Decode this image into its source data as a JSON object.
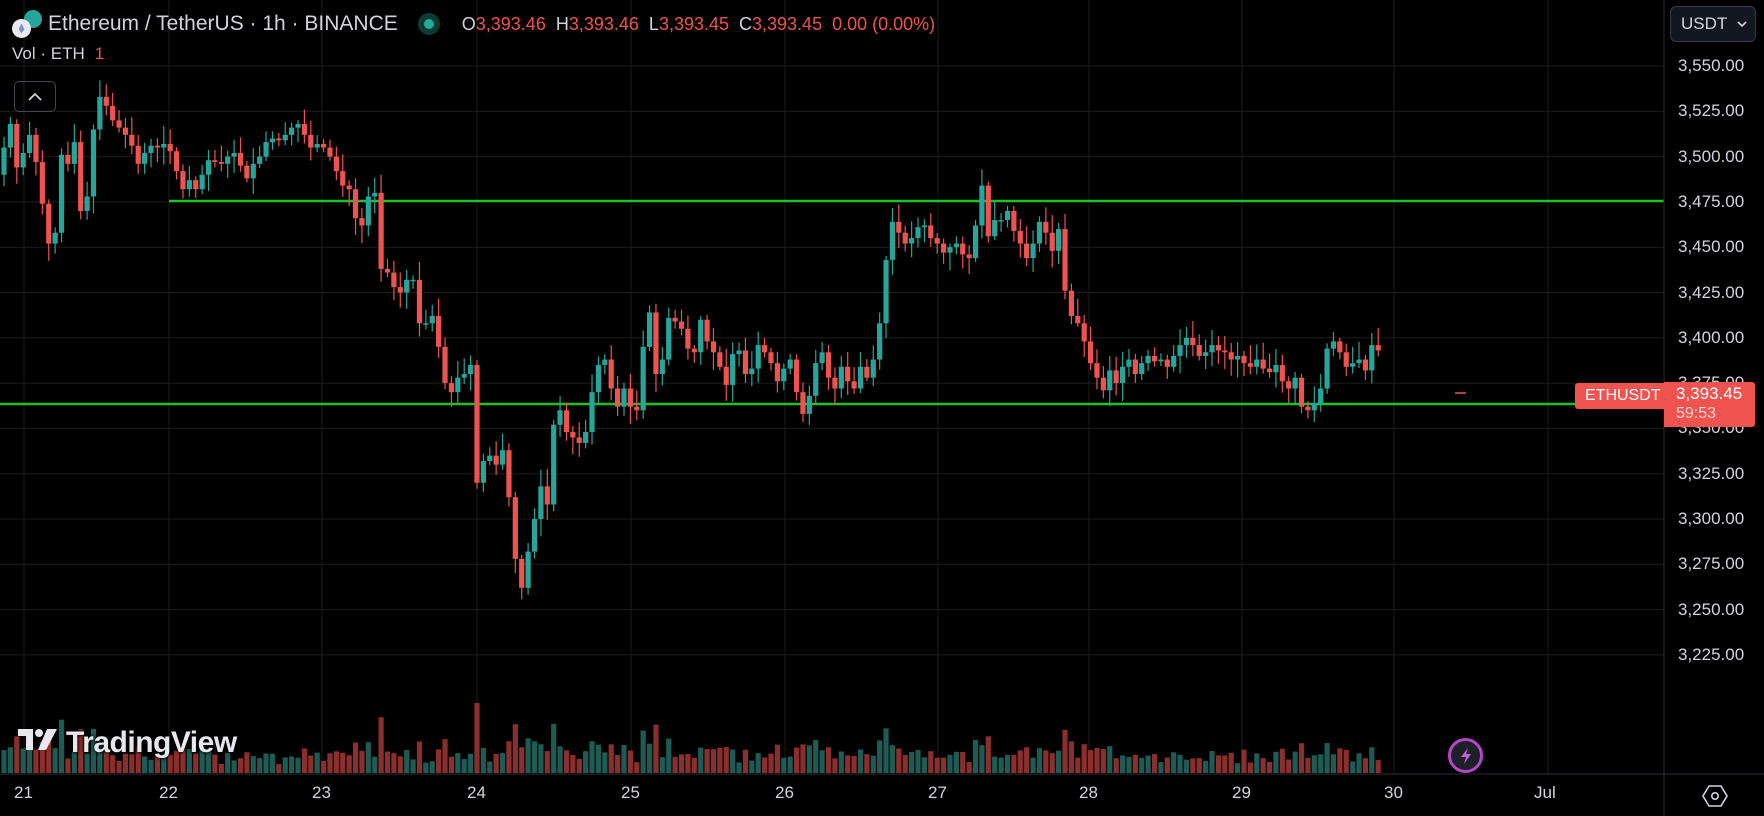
{
  "header": {
    "symbol_title": "Ethereum / TetherUS · 1h · BINANCE",
    "ohlc": [
      {
        "key": "O",
        "value": "3,393.46"
      },
      {
        "key": "H",
        "value": "3,393.46"
      },
      {
        "key": "L",
        "value": "3,393.45"
      },
      {
        "key": "C",
        "value": "3,393.45"
      }
    ],
    "change": "0.00 (0.00%)",
    "volume_label": "Vol · ETH",
    "volume_value": "1",
    "collapse_icon": "chevron-up-icon",
    "market_status": "market-open-dot"
  },
  "price_scale": {
    "currency": "USDT",
    "labels": [
      "3,550.00",
      "3,525.00",
      "3,500.00",
      "3,475.00",
      "3,450.00",
      "3,425.00",
      "3,400.00",
      "3,375.00",
      "3,350.00",
      "3,325.00",
      "3,300.00",
      "3,275.00",
      "3,250.00",
      "3,225.00"
    ]
  },
  "time_scale": {
    "labels": [
      "21",
      "22",
      "23",
      "24",
      "25",
      "26",
      "27",
      "28",
      "29",
      "30",
      "Jul"
    ]
  },
  "last_price": {
    "symbol": "ETHUSDT",
    "price": "3,393.45",
    "countdown": "59:53"
  },
  "branding": {
    "logo_text": "TradingView",
    "logo_mark": "T𝟏"
  },
  "colors": {
    "up": "#26a69a",
    "down": "#ef5350",
    "vol_up": "#1d5b54",
    "vol_down": "#8a2f2d",
    "level_lines": "#1fc12b",
    "grid": "#1c1c1c",
    "background": "#000000"
  },
  "chart_data": {
    "type": "candlestick",
    "title": "Ethereum / TetherUS · 1h · BINANCE",
    "interval": "1h",
    "xlabel": "",
    "ylabel": "USDT",
    "ylim": [
      3210,
      3560
    ],
    "x_ticks": [
      "21",
      "22",
      "23",
      "24",
      "25",
      "26",
      "27",
      "28",
      "29",
      "30",
      "Jul"
    ],
    "y_ticks": [
      3225,
      3250,
      3275,
      3300,
      3325,
      3350,
      3375,
      3400,
      3425,
      3450,
      3475,
      3500,
      3525,
      3550
    ],
    "horizontal_levels": [
      {
        "price": 3475.5,
        "start_day": "22",
        "color": "#1fc12b"
      },
      {
        "price": 3363.5,
        "start_day": "21",
        "color": "#1fc12b"
      }
    ],
    "last": {
      "open": 3393.46,
      "high": 3393.46,
      "low": 3393.45,
      "close": 3393.45,
      "change": "0.00 (0.00%)",
      "volume": 1
    },
    "closes_hourly": [
      3505,
      3518,
      3494,
      3502,
      3512,
      3497,
      3474,
      3452,
      3458,
      3501,
      3496,
      3508,
      3470,
      3478,
      3515,
      3533,
      3528,
      3520,
      3516,
      3512,
      3506,
      3496,
      3502,
      3506,
      3505,
      3507,
      3503,
      3492,
      3482,
      3487,
      3482,
      3490,
      3498,
      3497,
      3496,
      3500,
      3502,
      3495,
      3488,
      3496,
      3500,
      3508,
      3510,
      3509,
      3512,
      3516,
      3518,
      3512,
      3505,
      3507,
      3505,
      3500,
      3492,
      3484,
      3482,
      3466,
      3462,
      3478,
      3480,
      3438,
      3436,
      3428,
      3425,
      3432,
      3432,
      3408,
      3408,
      3412,
      3395,
      3375,
      3370,
      3378,
      3380,
      3385,
      3320,
      3332,
      3335,
      3330,
      3338,
      3312,
      3278,
      3262,
      3282,
      3300,
      3318,
      3308,
      3352,
      3360,
      3348,
      3345,
      3342,
      3348,
      3370,
      3385,
      3388,
      3372,
      3362,
      3372,
      3362,
      3360,
      3395,
      3414,
      3380,
      3388,
      3411,
      3409,
      3405,
      3394,
      3392,
      3410,
      3398,
      3392,
      3384,
      3374,
      3391,
      3393,
      3380,
      3383,
      3396,
      3392,
      3386,
      3376,
      3383,
      3388,
      3370,
      3358,
      3368,
      3386,
      3392,
      3378,
      3372,
      3384,
      3376,
      3372,
      3384,
      3378,
      3388,
      3408,
      3443,
      3464,
      3458,
      3452,
      3455,
      3461,
      3462,
      3455,
      3452,
      3447,
      3450,
      3452,
      3446,
      3444,
      3462,
      3484,
      3456,
      3465,
      3465,
      3470,
      3459,
      3452,
      3444,
      3452,
      3464,
      3458,
      3448,
      3460,
      3426,
      3412,
      3408,
      3398,
      3386,
      3378,
      3371,
      3382,
      3375,
      3384,
      3388,
      3380,
      3386,
      3390,
      3387,
      3388,
      3384,
      3390,
      3396,
      3400,
      3396,
      3390,
      3392,
      3396,
      3393,
      3392,
      3388,
      3390,
      3386,
      3384,
      3388,
      3383,
      3381,
      3385,
      3376,
      3372,
      3378,
      3362,
      3360,
      3364,
      3372,
      3394,
      3398,
      3392,
      3384,
      3386,
      3388,
      3382,
      3396,
      3393
    ]
  }
}
